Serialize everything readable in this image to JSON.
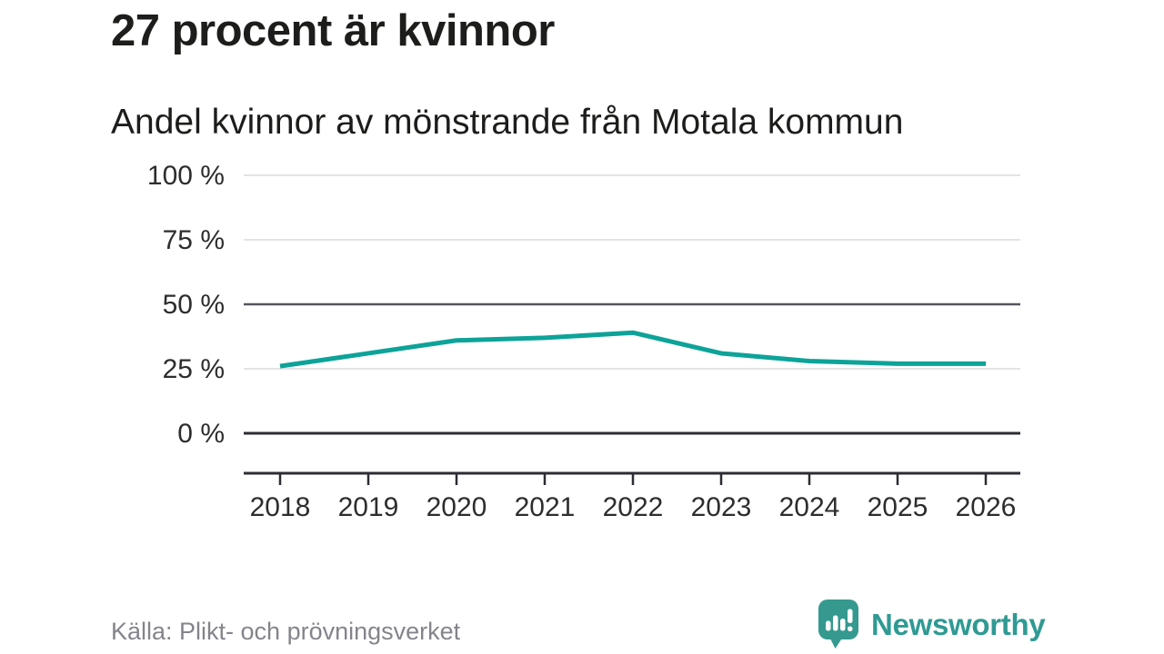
{
  "chart_data": {
    "type": "line",
    "title": "27 procent är kvinnor",
    "subtitle": "Andel kvinnor av mönstrande från Motala kommun",
    "x": [
      2018,
      2019,
      2020,
      2021,
      2022,
      2023,
      2024,
      2025,
      2026
    ],
    "series": [
      {
        "name": "Andel kvinnor",
        "values": [
          26,
          31,
          36,
          37,
          39,
          31,
          28,
          27,
          27
        ]
      }
    ],
    "unit": "%",
    "ylim": [
      0,
      100
    ],
    "yticks": [
      0,
      25,
      50,
      75,
      100
    ],
    "y_tick_labels": [
      "0 %",
      "25 %",
      "50 %",
      "75 %",
      "100 %"
    ],
    "grid": "horizontal",
    "legend": "none"
  },
  "footer": {
    "source": "Källa: Plikt- och prövningsverket",
    "brand": "Newsworthy"
  },
  "colors": {
    "line": "#0da399",
    "grid_light": "#e4e4e7",
    "grid_mid": "#55565e",
    "axis_dark": "#2c2d33",
    "tick_label": "#2d2d2d",
    "title_text": "#1d1d1b",
    "source_text": "#84848c",
    "brand_teal": "#2f9a93"
  }
}
